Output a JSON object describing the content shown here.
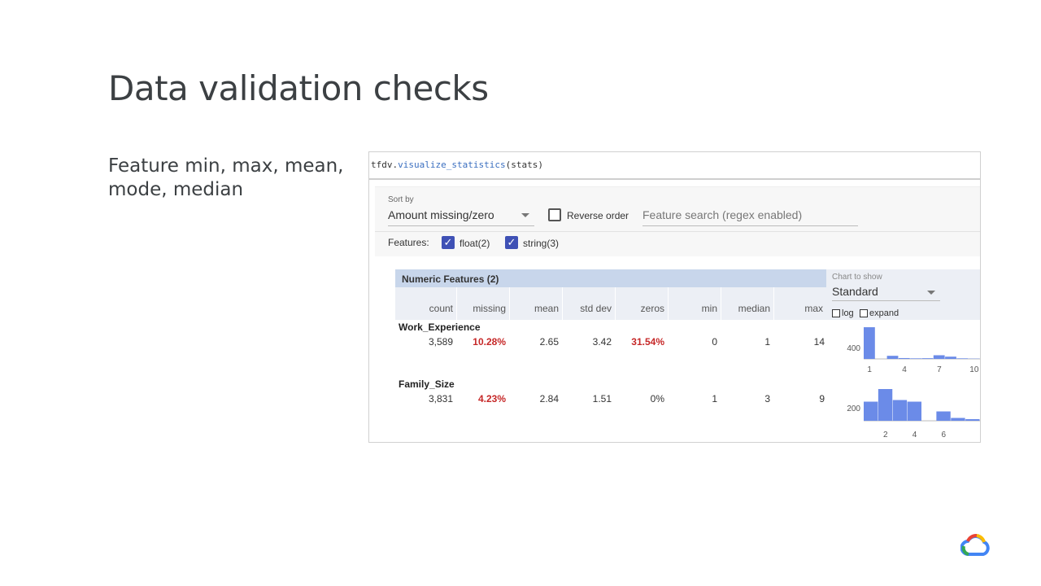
{
  "slide": {
    "title": "Data validation checks",
    "bullet": "Feature min, max, mean, mode, median"
  },
  "code": {
    "prefix": "tfdv.",
    "function": "visualize_statistics",
    "args": "(stats)"
  },
  "controls": {
    "sort_by_label": "Sort by",
    "sort_by_value": "Amount missing/zero",
    "reverse_order_label": "Reverse order",
    "reverse_order_checked": false,
    "search_placeholder": "Feature search (regex enabled)",
    "features_label": "Features:",
    "float_label": "float(2)",
    "float_checked": true,
    "string_label": "string(3)",
    "string_checked": true
  },
  "table": {
    "title": "Numeric Features (2)",
    "columns": [
      "count",
      "missing",
      "mean",
      "std dev",
      "zeros",
      "min",
      "median",
      "max"
    ],
    "chart_to_show_label": "Chart to show",
    "chart_to_show_value": "Standard",
    "log_label": "log",
    "expand_label": "expand",
    "rows": [
      {
        "name": "Work_Experience",
        "count": "3,589",
        "missing": "10.28%",
        "mean": "2.65",
        "std_dev": "3.42",
        "zeros": "31.54%",
        "min": "0",
        "median": "1",
        "max": "14",
        "y_tick": "400",
        "x_ticks": [
          "1",
          "4",
          "7",
          "10"
        ]
      },
      {
        "name": "Family_Size",
        "count": "3,831",
        "missing": "4.23%",
        "mean": "2.84",
        "std_dev": "1.51",
        "zeros": "0%",
        "min": "1",
        "median": "3",
        "max": "9",
        "y_tick": "200",
        "x_ticks": [
          "2",
          "4",
          "6"
        ]
      }
    ]
  },
  "chart_data": [
    {
      "type": "bar",
      "title": "",
      "feature": "Work_Experience",
      "bins": [
        1,
        2,
        3,
        4,
        5,
        6,
        7,
        8,
        9,
        10
      ],
      "values": [
        1120,
        0,
        110,
        30,
        20,
        25,
        130,
        80,
        20,
        10
      ],
      "x_ticks": [
        "1",
        "4",
        "7",
        "10"
      ],
      "y_ticks": [
        "400"
      ],
      "color": "#6b8be8"
    },
    {
      "type": "bar",
      "title": "",
      "feature": "Family_Size",
      "bins": [
        1,
        2,
        3,
        4,
        5,
        6,
        7,
        8
      ],
      "values": [
        470,
        780,
        510,
        470,
        0,
        230,
        70,
        40
      ],
      "x_ticks": [
        "2",
        "4",
        "6"
      ],
      "y_ticks": [
        "200"
      ],
      "color": "#6b8be8"
    }
  ]
}
